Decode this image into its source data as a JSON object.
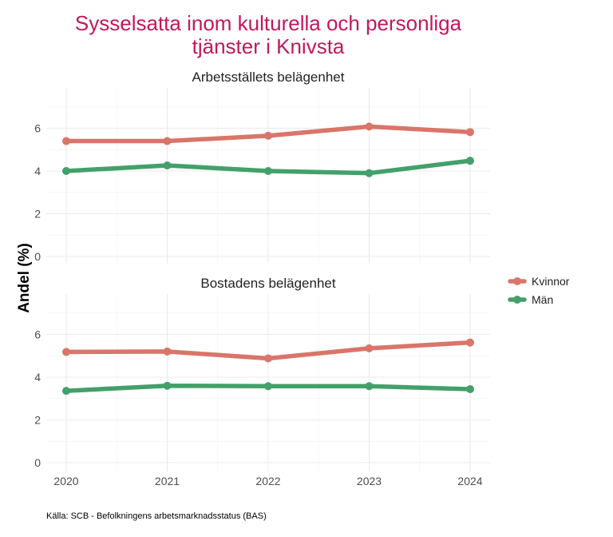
{
  "chart_data": {
    "type": "line",
    "title_lines": [
      "Sysselsatta inom kulturella och personliga",
      "tjänster i Knivsta"
    ],
    "ylabel": "Andel (%)",
    "xlabel": "",
    "x": [
      2020,
      2021,
      2022,
      2023,
      2024
    ],
    "x_tick_labels": [
      "2020",
      "2021",
      "2022",
      "2023",
      "2024"
    ],
    "ylim": [
      0,
      7.5
    ],
    "y_ticks": [
      0,
      2,
      4,
      6
    ],
    "y_tick_labels": [
      "0",
      "2",
      "4",
      "6"
    ],
    "legend_position": "right",
    "legend": [
      {
        "name": "Kvinnor",
        "color": "#d9756a"
      },
      {
        "name": "Män",
        "color": "#43a06a"
      }
    ],
    "facets": [
      {
        "title": "Arbetsställets belägenhet",
        "series": [
          {
            "name": "Kvinnor",
            "color": "#d9756a",
            "values": [
              5.4,
              5.4,
              5.65,
              6.08,
              5.82
            ]
          },
          {
            "name": "Män",
            "color": "#43a06a",
            "values": [
              4.0,
              4.26,
              4.0,
              3.9,
              4.48
            ]
          }
        ]
      },
      {
        "title": "Bostadens belägenhet",
        "series": [
          {
            "name": "Kvinnor",
            "color": "#d9756a",
            "values": [
              5.18,
              5.2,
              4.88,
              5.35,
              5.62
            ]
          },
          {
            "name": "Män",
            "color": "#43a06a",
            "values": [
              3.36,
              3.6,
              3.58,
              3.58,
              3.44
            ]
          }
        ]
      }
    ],
    "caption": "Källa: SCB - Befolkningens arbetsmarknadsstatus (BAS)"
  }
}
